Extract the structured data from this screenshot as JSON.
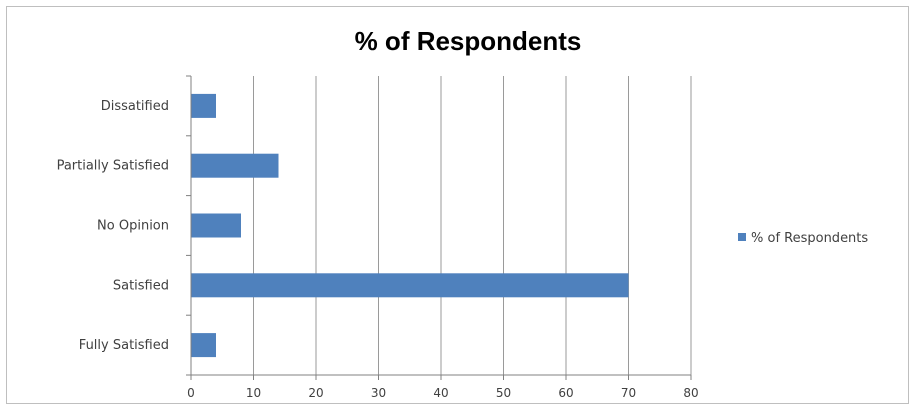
{
  "chart_data": {
    "type": "bar",
    "orientation": "horizontal",
    "title": "% of Respondents",
    "categories": [
      "Dissatified",
      "Partially Satisfied",
      "No Opinion",
      "Satisfied",
      "Fully Satisfied"
    ],
    "series": [
      {
        "name": "% of Respondents",
        "values": [
          4,
          14,
          8,
          70,
          4
        ]
      }
    ],
    "xlim": [
      0,
      80
    ],
    "xticks": [
      "0",
      "10",
      "20",
      "30",
      "40",
      "50",
      "60",
      "70",
      "80"
    ],
    "grid": "vertical",
    "legend": "right",
    "colors": {
      "bar": "#4f81bd",
      "grid": "#9a9a9a",
      "axis": "#808080"
    }
  }
}
